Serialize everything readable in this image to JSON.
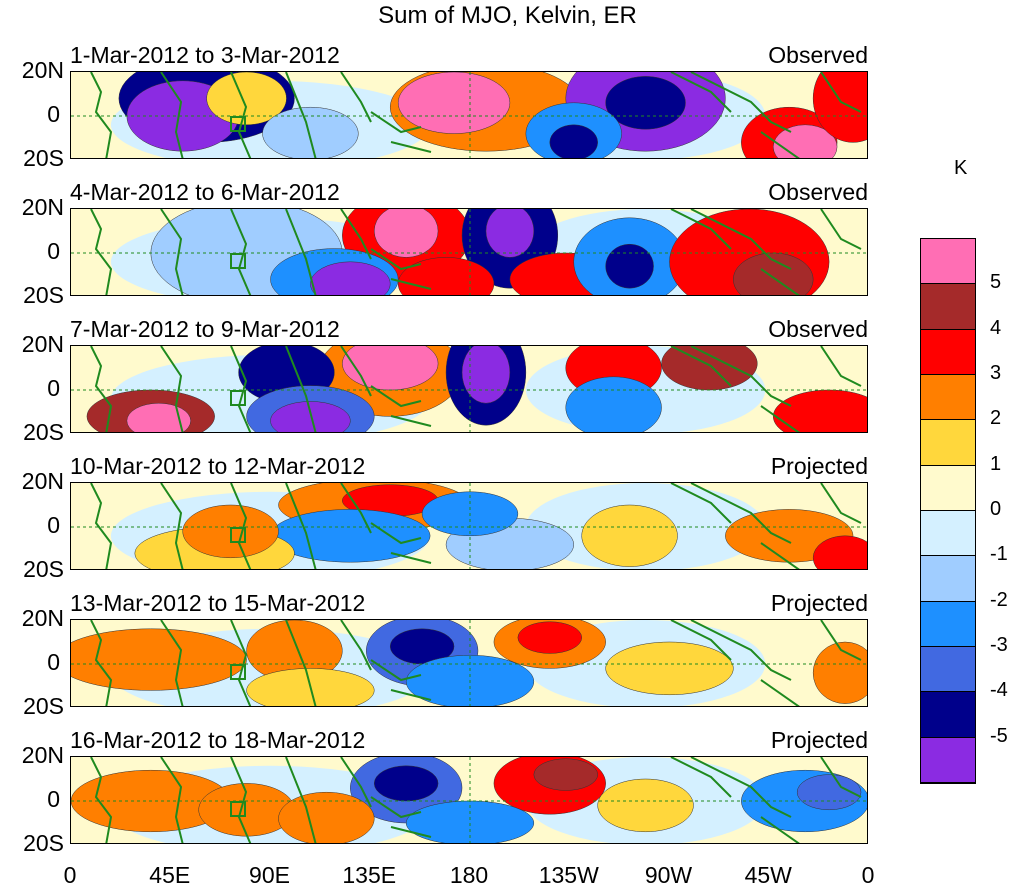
{
  "title": "Sum of MJO, Kelvin, ER",
  "units": "K",
  "y_labels": [
    "20N",
    "0",
    "20S"
  ],
  "x_labels": [
    "0",
    "45E",
    "90E",
    "135E",
    "180",
    "135W",
    "90W",
    "45W",
    "0"
  ],
  "panels": [
    {
      "date_range": "1-Mar-2012 to 3-Mar-2012",
      "type": "Observed"
    },
    {
      "date_range": "4-Mar-2012 to 6-Mar-2012",
      "type": "Observed"
    },
    {
      "date_range": "7-Mar-2012 to 9-Mar-2012",
      "type": "Observed"
    },
    {
      "date_range": "10-Mar-2012 to 12-Mar-2012",
      "type": "Projected"
    },
    {
      "date_range": "13-Mar-2012 to 15-Mar-2012",
      "type": "Projected"
    },
    {
      "date_range": "16-Mar-2012 to 18-Mar-2012",
      "type": "Projected"
    }
  ],
  "legend": {
    "labels": [
      "5",
      "4",
      "3",
      "2",
      "1",
      "0",
      "-1",
      "-2",
      "-3",
      "-4",
      "-5"
    ],
    "colors": [
      "#ff6eb4",
      "#a52a2a",
      "#ff0000",
      "#ff7f00",
      "#ffd73c",
      "#fffacd",
      "#d4f0ff",
      "#a0cdff",
      "#1e90ff",
      "#4169e1",
      "#00008b",
      "#8b2be2"
    ]
  }
}
